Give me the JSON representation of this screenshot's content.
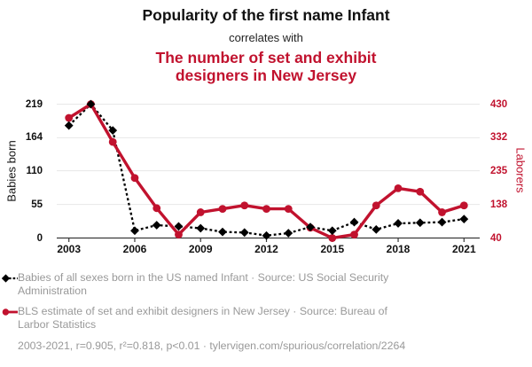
{
  "header": {
    "title": "Popularity of the first name Infant",
    "connector": "correlates with",
    "subtitle": "The number of set and exhibit\ndesigners in New Jersey"
  },
  "theme": {
    "accent": "#c1122e",
    "muted": "#999999",
    "grid": "#e7e7e7",
    "axis": "#3a3a3a",
    "series_black": "#000000"
  },
  "chart_data": {
    "type": "line",
    "x": [
      2003,
      2004,
      2005,
      2006,
      2007,
      2008,
      2009,
      2010,
      2011,
      2012,
      2013,
      2014,
      2015,
      2016,
      2017,
      2018,
      2019,
      2020,
      2021
    ],
    "x_ticks": [
      2003,
      2006,
      2009,
      2012,
      2015,
      2018,
      2021
    ],
    "grid": "horizontal",
    "legend_position": "below",
    "left_axis": {
      "label": "Babies born",
      "ticks": [
        "0",
        "55",
        "110",
        "164",
        "219"
      ],
      "tick_values": [
        0,
        55,
        110,
        164,
        219
      ],
      "ylim": [
        0,
        219
      ],
      "color": "#111111"
    },
    "right_axis": {
      "label": "Laborers",
      "ticks": [
        "40",
        "138",
        "235",
        "332",
        "430"
      ],
      "tick_values": [
        40,
        138,
        235,
        332,
        430
      ],
      "ylim": [
        40,
        430
      ],
      "color": "#c1122e"
    },
    "series": [
      {
        "name": "Babies of all sexes born in the US named Infant",
        "axis": "left",
        "color": "#000000",
        "line_style": "dotted",
        "marker": "diamond",
        "values": [
          184,
          219,
          176,
          12,
          21,
          19,
          16,
          10,
          9,
          4,
          8,
          18,
          12,
          26,
          14,
          24,
          25,
          26,
          31
        ]
      },
      {
        "name": "BLS estimate of set and exhibit designers in New Jersey",
        "axis": "right",
        "color": "#c1122e",
        "line_style": "solid",
        "marker": "circle",
        "values": [
          390,
          430,
          320,
          215,
          127,
          50,
          115,
          125,
          135,
          125,
          125,
          70,
          40,
          50,
          135,
          185,
          175,
          115,
          135
        ]
      }
    ]
  },
  "legend": [
    {
      "label": "Babies of all sexes born in the US named Infant · Source: US Social Security\nAdministration",
      "color": "#000000",
      "marker": "diamond-dashed"
    },
    {
      "label": "BLS estimate of set and exhibit designers in New Jersey · Source: Bureau of\nLarbor Statistics",
      "color": "#c1122e",
      "marker": "circle-solid"
    }
  ],
  "footer": {
    "text": "2003-2021, r=0.905, r²=0.818, p<0.01 · tylervigen.com/spurious/correlation/2264"
  }
}
